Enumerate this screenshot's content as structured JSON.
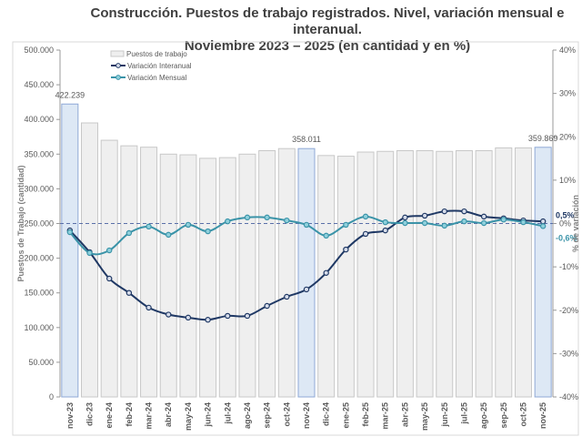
{
  "chart_data": {
    "type": "bar+line",
    "title": "Construcción. Puestos de trabajo registrados. Nivel, variación mensual e interanual.",
    "subtitle": "Noviembre 2023 – 2025 (en cantidad y en %)",
    "ylabel": "Puestos de Trabajo (cantidad)",
    "y2label": "% de variación",
    "ylim": [
      0,
      500000
    ],
    "y2lim": [
      -40,
      40
    ],
    "yticks": [
      "0",
      "50.000",
      "100.000",
      "150.000",
      "200.000",
      "250.000",
      "300.000",
      "350.000",
      "400.000",
      "450.000",
      "500.000"
    ],
    "y2ticks": [
      "-40%",
      "-30%",
      "-20%",
      "-10%",
      "0%",
      "10%",
      "20%",
      "30%",
      "40%"
    ],
    "categories": [
      "nov-23",
      "dic-23",
      "ene-24",
      "feb-24",
      "mar-24",
      "abr-24",
      "may-24",
      "jun-24",
      "jul-24",
      "ago-24",
      "sep-24",
      "oct-24",
      "nov-24",
      "dic-24",
      "ene-25",
      "feb-25",
      "mar-25",
      "abr-25",
      "may-25",
      "jun-25",
      "jul-25",
      "ago-25",
      "sep-25",
      "oct-25",
      "nov-25"
    ],
    "legend": [
      "Puestos de trabajo",
      "Variación Interanual",
      "Variación Mensual"
    ],
    "legend_position": "top-left",
    "bars": {
      "name": "Puestos de trabajo",
      "values": [
        422239,
        395000,
        370000,
        362000,
        360000,
        350000,
        349000,
        344000,
        345000,
        350000,
        355000,
        358000,
        358011,
        348000,
        347000,
        353000,
        354000,
        355000,
        355000,
        354000,
        355000,
        355000,
        359000,
        359000,
        359869
      ],
      "highlight": [
        0,
        12,
        24
      ]
    },
    "bar_labels": [
      {
        "index": 0,
        "text": "422.239"
      },
      {
        "index": 12,
        "text": "358.011"
      },
      {
        "index": 24,
        "text": "359.869"
      }
    ],
    "series": [
      {
        "name": "Variación Interanual",
        "color": "#1f3864",
        "axis": "right",
        "values": [
          -1.6,
          -6.6,
          -12.7,
          -16,
          -19.4,
          -21,
          -21.7,
          -22.2,
          -21.3,
          -21.3,
          -19,
          -16.9,
          -15.2,
          -11.4,
          -6,
          -2.4,
          -1.6,
          1.4,
          1.8,
          2.8,
          2.8,
          1.6,
          1.2,
          0.7,
          0.5
        ]
      },
      {
        "name": "Variación Mensual",
        "color": "#3a93a8",
        "axis": "right",
        "values": [
          -2,
          -6.8,
          -6.2,
          -2.2,
          -0.7,
          -2.6,
          -0.3,
          -1.8,
          0.5,
          1.4,
          1.4,
          0.7,
          -0.3,
          -2.8,
          -0.3,
          1.6,
          0.3,
          0.1,
          0.1,
          -0.5,
          0.5,
          0.1,
          0.9,
          0.3,
          -0.6
        ]
      }
    ],
    "end_labels": [
      "0,5%",
      "-0,6%"
    ],
    "colors": {
      "bar": "#efefef",
      "bar_highlight": "#dde8f5",
      "bar_highlight_border": "#8fa9d6",
      "interanual": "#1f3864",
      "mensual": "#3a93a8"
    }
  }
}
